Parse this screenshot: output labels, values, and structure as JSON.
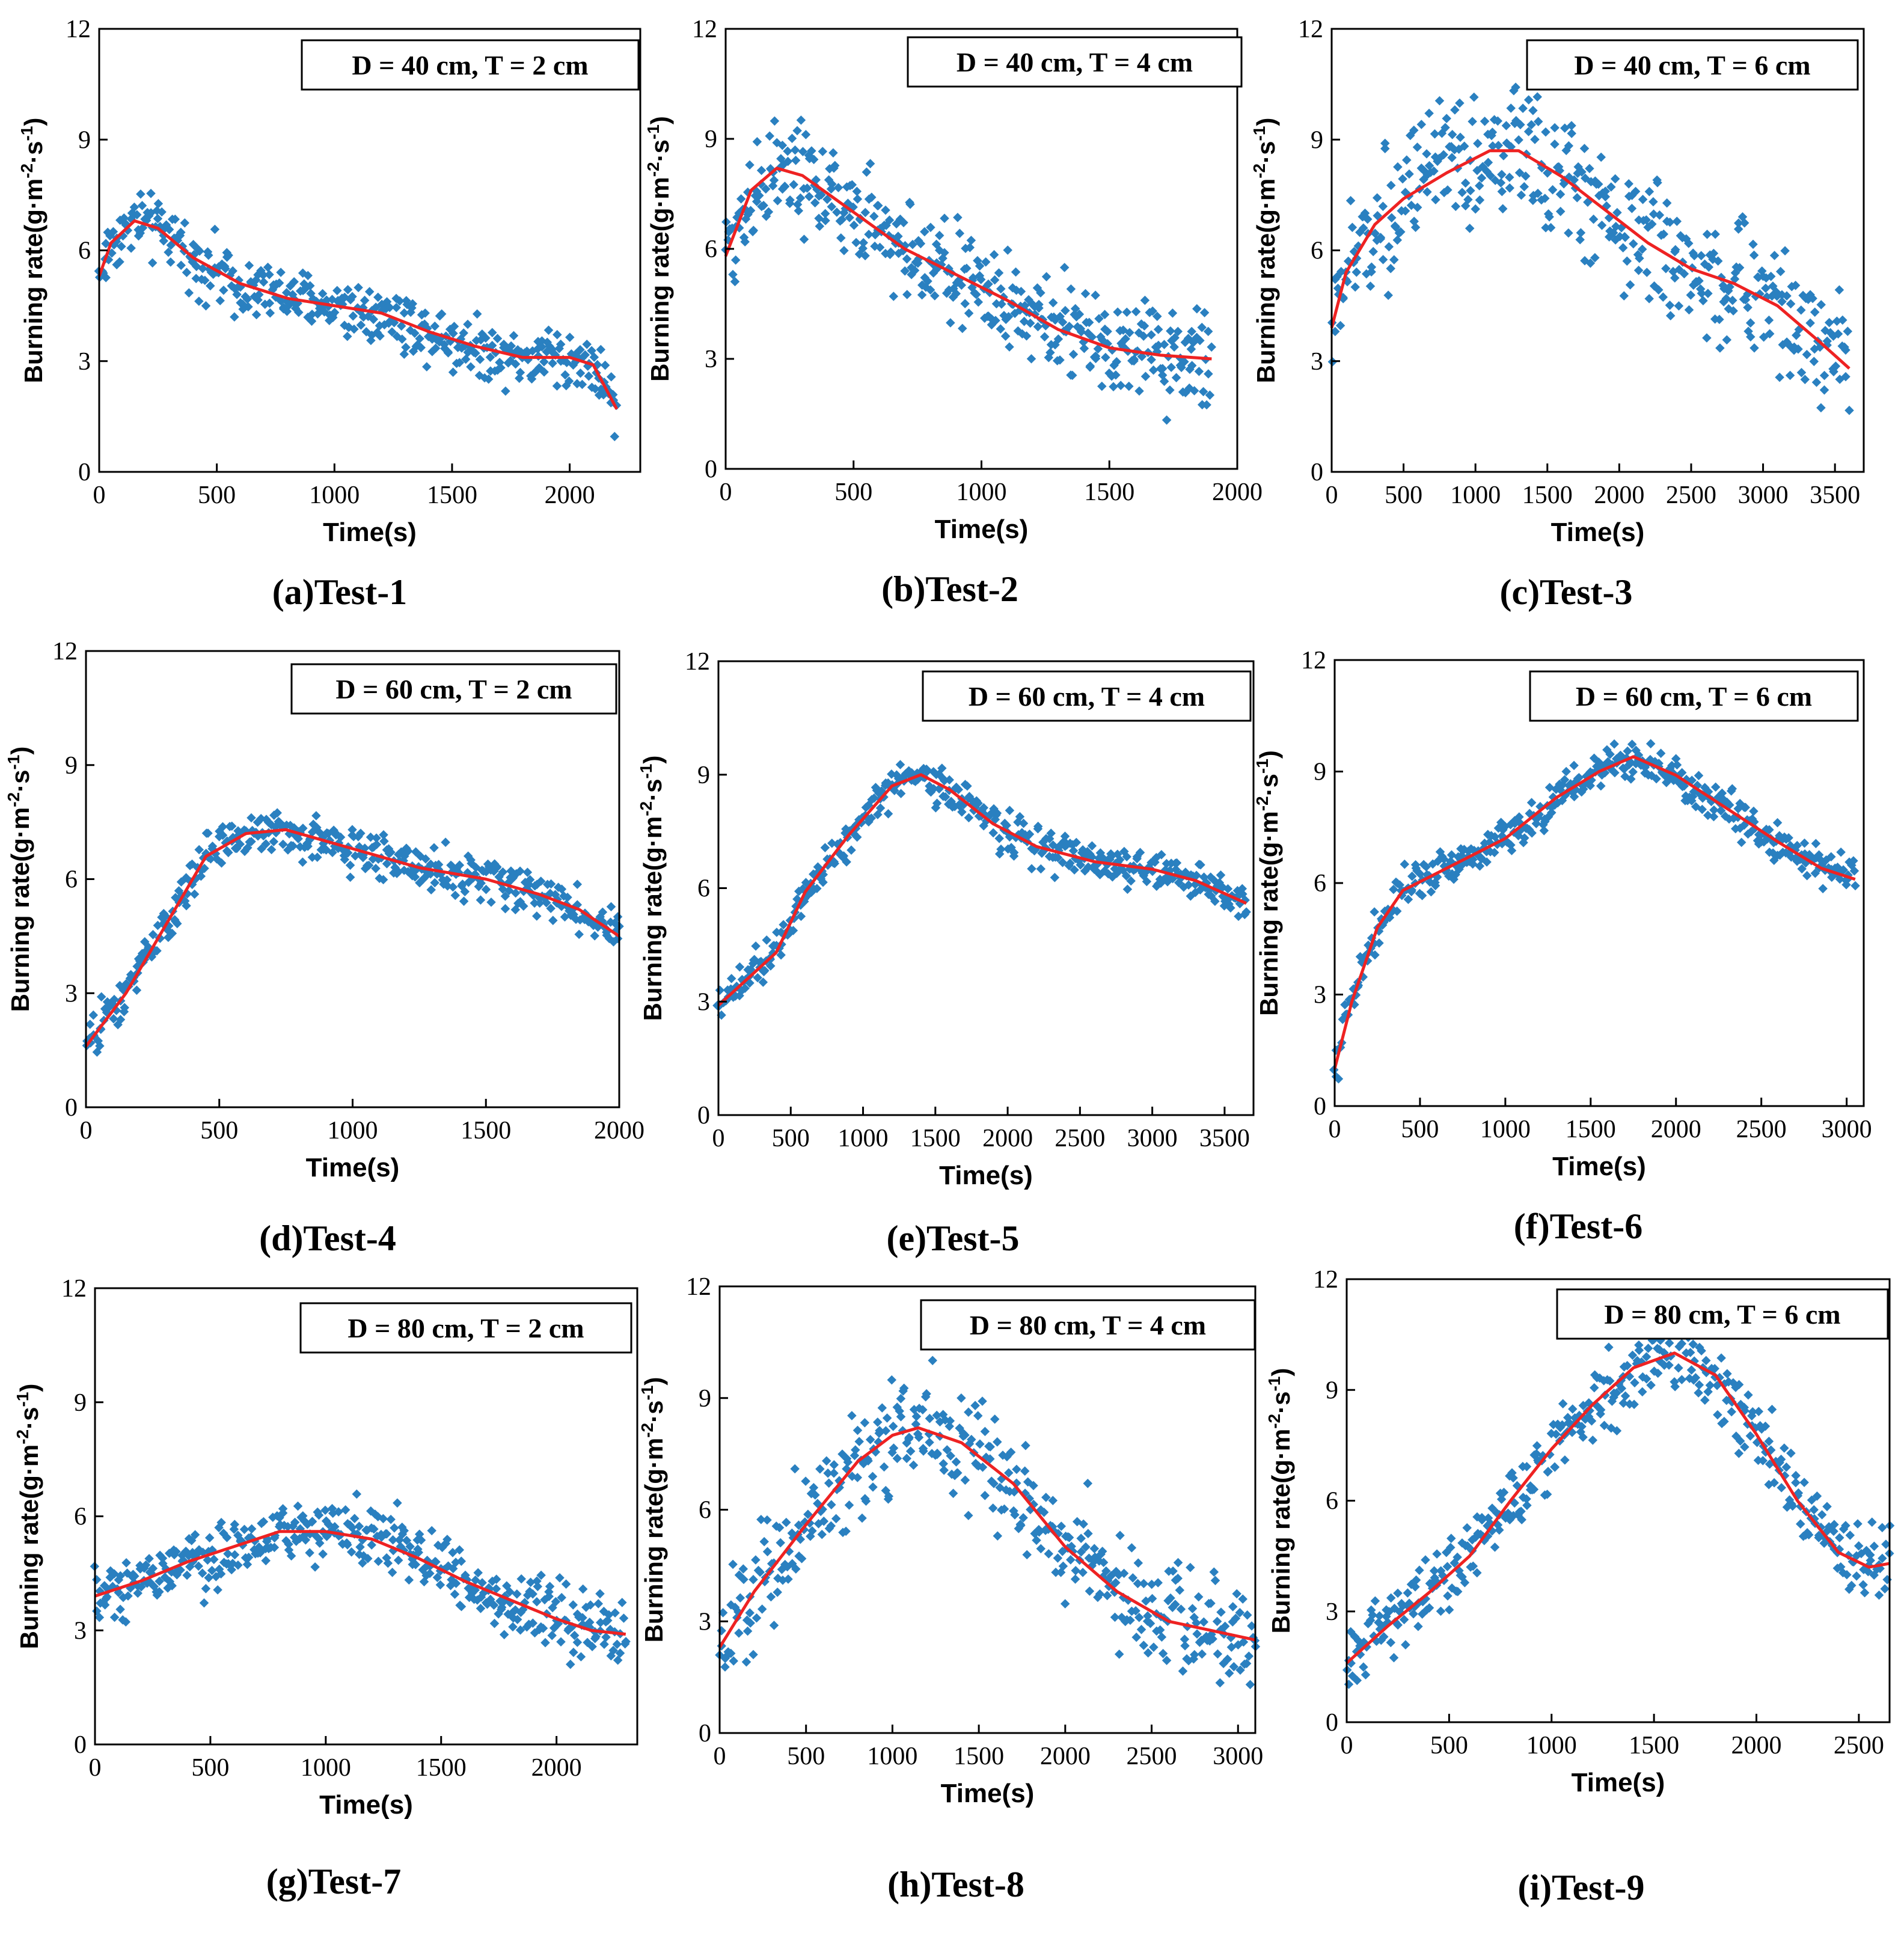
{
  "colors": {
    "points": "#2a80c0",
    "fit": "#ee2222",
    "axis": "#000000"
  },
  "chart_data": [
    {
      "id": "test-1",
      "type": "scatter",
      "title": "D = 40 cm, T = 2 cm",
      "caption": "(a)Test-1",
      "xlabel": "Time(s)",
      "ylabel": "Burning rate(g·m-2·s-1)",
      "ylabel_parts": [
        "Burning rate(g·m",
        "-2",
        "·s",
        "-1",
        ")"
      ],
      "xlim": [
        0,
        2300
      ],
      "ylim": [
        0,
        12
      ],
      "xticks": [
        0,
        500,
        1000,
        1500,
        2000
      ],
      "yticks": [
        0,
        3,
        6,
        9,
        12
      ],
      "x_end": 2200,
      "noise": 0.7,
      "fit": [
        [
          0,
          5.3
        ],
        [
          50,
          6.2
        ],
        [
          150,
          6.8
        ],
        [
          250,
          6.6
        ],
        [
          400,
          5.8
        ],
        [
          600,
          5.1
        ],
        [
          800,
          4.7
        ],
        [
          1000,
          4.5
        ],
        [
          1200,
          4.3
        ],
        [
          1400,
          3.8
        ],
        [
          1600,
          3.4
        ],
        [
          1800,
          3.1
        ],
        [
          2000,
          3.1
        ],
        [
          2100,
          2.9
        ],
        [
          2200,
          1.7
        ]
      ]
    },
    {
      "id": "test-2",
      "type": "scatter",
      "title": "D = 40 cm, T = 4 cm",
      "caption": "(b)Test-2",
      "xlabel": "Time(s)",
      "ylabel": "Burning rate(g·m-2·s-1)",
      "ylabel_parts": [
        "Burning rate(g·m",
        "-2",
        "·s",
        "-1",
        ")"
      ],
      "xlim": [
        0,
        2000
      ],
      "ylim": [
        0,
        12
      ],
      "xticks": [
        0,
        500,
        1000,
        1500,
        2000
      ],
      "yticks": [
        0,
        3,
        6,
        9,
        12
      ],
      "x_end": 1900,
      "noise": 1.2,
      "fit": [
        [
          0,
          5.8
        ],
        [
          100,
          7.6
        ],
        [
          200,
          8.2
        ],
        [
          300,
          8.0
        ],
        [
          500,
          7.0
        ],
        [
          700,
          6.0
        ],
        [
          900,
          5.3
        ],
        [
          1100,
          4.6
        ],
        [
          1300,
          3.8
        ],
        [
          1500,
          3.3
        ],
        [
          1700,
          3.1
        ],
        [
          1900,
          3.0
        ]
      ]
    },
    {
      "id": "test-3",
      "type": "scatter",
      "title": "D = 40 cm, T = 6 cm",
      "caption": "(c)Test-3",
      "xlabel": "Time(s)",
      "ylabel": "Burning rate(g·m-2·s-1)",
      "ylabel_parts": [
        "Burning rate(g·m",
        "-2",
        "·s",
        "-1",
        ")"
      ],
      "xlim": [
        0,
        3700
      ],
      "ylim": [
        0,
        12
      ],
      "xticks": [
        0,
        500,
        1000,
        1500,
        2000,
        2500,
        3000,
        3500
      ],
      "yticks": [
        0,
        3,
        6,
        9,
        12
      ],
      "x_end": 3600,
      "noise": 1.5,
      "fit": [
        [
          0,
          3.9
        ],
        [
          100,
          5.4
        ],
        [
          300,
          6.7
        ],
        [
          500,
          7.4
        ],
        [
          800,
          8.1
        ],
        [
          1100,
          8.7
        ],
        [
          1300,
          8.7
        ],
        [
          1600,
          8.0
        ],
        [
          1900,
          7.1
        ],
        [
          2200,
          6.2
        ],
        [
          2500,
          5.5
        ],
        [
          2800,
          5.1
        ],
        [
          3100,
          4.5
        ],
        [
          3400,
          3.5
        ],
        [
          3600,
          2.8
        ]
      ]
    },
    {
      "id": "test-4",
      "type": "scatter",
      "title": "D = 60 cm, T = 2 cm",
      "caption": "(d)Test-4",
      "xlabel": "Time(s)",
      "ylabel": "Burning rate(g·m-2·s-1)",
      "ylabel_parts": [
        "Burning rate(g·m",
        "-2",
        "·s",
        "-1",
        ")"
      ],
      "xlim": [
        0,
        2000
      ],
      "ylim": [
        0,
        12
      ],
      "xticks": [
        0,
        500,
        1000,
        1500,
        2000
      ],
      "yticks": [
        0,
        3,
        6,
        9,
        12
      ],
      "x_end": 2000,
      "noise": 0.5,
      "fit": [
        [
          0,
          1.6
        ],
        [
          150,
          3.0
        ],
        [
          300,
          4.8
        ],
        [
          450,
          6.6
        ],
        [
          600,
          7.2
        ],
        [
          750,
          7.3
        ],
        [
          1000,
          6.8
        ],
        [
          1250,
          6.3
        ],
        [
          1500,
          6.0
        ],
        [
          1700,
          5.6
        ],
        [
          1850,
          5.2
        ],
        [
          2000,
          4.5
        ]
      ]
    },
    {
      "id": "test-5",
      "type": "scatter",
      "title": "D = 60 cm, T = 4 cm",
      "caption": "(e)Test-5",
      "xlabel": "Time(s)",
      "ylabel": "Burning rate(g·m-2·s-1)",
      "ylabel_parts": [
        "Burning rate(g·m",
        "-2",
        "·s",
        "-1",
        ")"
      ],
      "xlim": [
        0,
        3700
      ],
      "ylim": [
        0,
        12
      ],
      "xticks": [
        0,
        500,
        1000,
        1500,
        2000,
        2500,
        3000,
        3500
      ],
      "yticks": [
        0,
        3,
        6,
        9,
        12
      ],
      "x_end": 3650,
      "noise": 0.45,
      "fit": [
        [
          0,
          2.9
        ],
        [
          200,
          3.6
        ],
        [
          400,
          4.3
        ],
        [
          600,
          5.9
        ],
        [
          900,
          7.4
        ],
        [
          1200,
          8.7
        ],
        [
          1400,
          9.0
        ],
        [
          1600,
          8.6
        ],
        [
          1900,
          7.7
        ],
        [
          2200,
          7.1
        ],
        [
          2600,
          6.7
        ],
        [
          3000,
          6.5
        ],
        [
          3300,
          6.2
        ],
        [
          3650,
          5.6
        ]
      ]
    },
    {
      "id": "test-6",
      "type": "scatter",
      "title": "D = 60 cm, T = 6 cm",
      "caption": "(f)Test-6",
      "xlabel": "Time(s)",
      "ylabel": "Burning rate(g·m-2·s-1)",
      "ylabel_parts": [
        "Burning rate(g·m",
        "-2",
        "·s",
        "-1",
        ")"
      ],
      "xlim": [
        0,
        3100
      ],
      "ylim": [
        0,
        12
      ],
      "xticks": [
        0,
        500,
        1000,
        1500,
        2000,
        2500,
        3000
      ],
      "yticks": [
        0,
        3,
        6,
        9,
        12
      ],
      "x_end": 3050,
      "noise": 0.45,
      "fit": [
        [
          0,
          1.0
        ],
        [
          100,
          2.8
        ],
        [
          250,
          4.8
        ],
        [
          400,
          5.8
        ],
        [
          700,
          6.5
        ],
        [
          1000,
          7.2
        ],
        [
          1300,
          8.3
        ],
        [
          1550,
          9.0
        ],
        [
          1750,
          9.4
        ],
        [
          2000,
          8.9
        ],
        [
          2300,
          8.0
        ],
        [
          2600,
          7.1
        ],
        [
          2850,
          6.4
        ],
        [
          3050,
          6.1
        ]
      ]
    },
    {
      "id": "test-7",
      "type": "scatter",
      "title": "D = 80 cm, T = 2 cm",
      "caption": "(g)Test-7",
      "xlabel": "Time(s)",
      "ylabel": "Burning rate(g·m-2·s-1)",
      "ylabel_parts": [
        "Burning rate(g·m",
        "-2",
        "·s",
        "-1",
        ")"
      ],
      "xlim": [
        0,
        2350
      ],
      "ylim": [
        0,
        12
      ],
      "xticks": [
        0,
        500,
        1000,
        1500,
        2000
      ],
      "yticks": [
        0,
        3,
        6,
        9,
        12
      ],
      "x_end": 2300,
      "noise": 0.75,
      "fit": [
        [
          0,
          3.9
        ],
        [
          200,
          4.3
        ],
        [
          400,
          4.8
        ],
        [
          600,
          5.2
        ],
        [
          800,
          5.6
        ],
        [
          1000,
          5.6
        ],
        [
          1200,
          5.4
        ],
        [
          1400,
          4.9
        ],
        [
          1600,
          4.3
        ],
        [
          1800,
          3.8
        ],
        [
          2000,
          3.3
        ],
        [
          2150,
          3.0
        ],
        [
          2300,
          2.9
        ]
      ]
    },
    {
      "id": "test-8",
      "type": "scatter",
      "title": "D = 80 cm, T = 4 cm",
      "caption": "(h)Test-8",
      "xlabel": "Time(s)",
      "ylabel": "Burning rate(g·m-2·s-1)",
      "ylabel_parts": [
        "Burning rate(g·m",
        "-2",
        "·s",
        "-1",
        ")"
      ],
      "xlim": [
        0,
        3100
      ],
      "ylim": [
        0,
        12
      ],
      "xticks": [
        0,
        500,
        1000,
        1500,
        2000,
        2500,
        3000
      ],
      "yticks": [
        0,
        3,
        6,
        9,
        12
      ],
      "x_end": 3100,
      "noise": 1.3,
      "fit": [
        [
          0,
          2.3
        ],
        [
          200,
          3.8
        ],
        [
          500,
          5.6
        ],
        [
          800,
          7.3
        ],
        [
          1000,
          8.0
        ],
        [
          1150,
          8.2
        ],
        [
          1400,
          7.8
        ],
        [
          1700,
          6.7
        ],
        [
          2000,
          5.0
        ],
        [
          2300,
          3.8
        ],
        [
          2600,
          3.0
        ],
        [
          2900,
          2.7
        ],
        [
          3100,
          2.5
        ]
      ]
    },
    {
      "id": "test-9",
      "type": "scatter",
      "title": "D = 80 cm, T = 6 cm",
      "caption": "(i)Test-9",
      "xlabel": "Time(s)",
      "ylabel": "Burning rate(g·m-2·s-1)",
      "ylabel_parts": [
        "Burning rate(g·m",
        "-2",
        "·s",
        "-1",
        ")"
      ],
      "xlim": [
        0,
        2650
      ],
      "ylim": [
        0,
        12
      ],
      "xticks": [
        0,
        500,
        1000,
        1500,
        2000,
        2500
      ],
      "yticks": [
        0,
        3,
        6,
        9,
        12
      ],
      "x_end": 2650,
      "noise": 0.9,
      "fit": [
        [
          0,
          1.6
        ],
        [
          200,
          2.6
        ],
        [
          400,
          3.5
        ],
        [
          600,
          4.5
        ],
        [
          800,
          6.0
        ],
        [
          1000,
          7.4
        ],
        [
          1200,
          8.6
        ],
        [
          1400,
          9.6
        ],
        [
          1600,
          10.0
        ],
        [
          1800,
          9.4
        ],
        [
          2000,
          7.8
        ],
        [
          2200,
          6.0
        ],
        [
          2400,
          4.6
        ],
        [
          2550,
          4.2
        ],
        [
          2650,
          4.3
        ]
      ]
    }
  ]
}
